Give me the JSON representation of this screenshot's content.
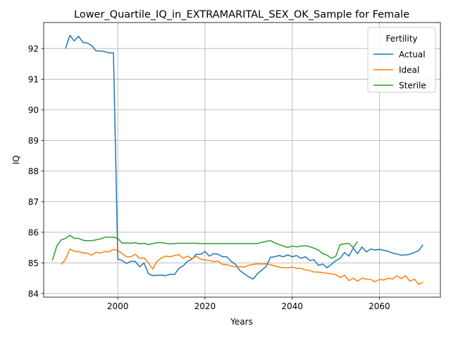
{
  "chart_data": {
    "type": "line",
    "title": "Lower_Quartile_IQ_in_EXTRAMARITAL_SEX_OK_Sample for Female",
    "xlabel": "Years",
    "ylabel": "IQ",
    "xlim": [
      1983,
      2074
    ],
    "ylim": [
      83.88,
      92.85
    ],
    "xticks": [
      2000,
      2020,
      2040,
      2060
    ],
    "yticks": [
      84,
      85,
      86,
      87,
      88,
      89,
      90,
      91,
      92
    ],
    "grid": true,
    "legend": {
      "title": "Fertility",
      "placement": "top-right"
    },
    "series": [
      {
        "name": "Actual",
        "color": "#1f77b4",
        "x": [
          1988,
          1989,
          1990,
          1991,
          1992,
          1993,
          1994,
          1995,
          1996,
          1997,
          1998,
          1999,
          2000,
          2001,
          2002,
          2003,
          2004,
          2005,
          2006,
          2007,
          2008,
          2009,
          2010,
          2011,
          2012,
          2013,
          2014,
          2015,
          2016,
          2017,
          2018,
          2019,
          2020,
          2021,
          2022,
          2023,
          2024,
          2025,
          2026,
          2027,
          2028,
          2029,
          2030,
          2031,
          2032,
          2033,
          2034,
          2035,
          2036,
          2037,
          2038,
          2039,
          2040,
          2041,
          2042,
          2043,
          2044,
          2045,
          2046,
          2047,
          2048,
          2049,
          2050,
          2051,
          2052,
          2053,
          2054,
          2055,
          2056,
          2057,
          2058,
          2059,
          2060,
          2061,
          2062,
          2063,
          2064,
          2065,
          2066,
          2067,
          2068,
          2069,
          2070
        ],
        "y": [
          92.0,
          92.43,
          92.25,
          92.4,
          92.2,
          92.18,
          92.1,
          91.92,
          91.92,
          91.9,
          91.86,
          91.86,
          85.12,
          85.08,
          84.98,
          85.05,
          85.05,
          84.87,
          85.0,
          84.65,
          84.58,
          84.6,
          84.6,
          84.58,
          84.63,
          84.62,
          84.82,
          84.9,
          85.05,
          85.12,
          85.28,
          85.28,
          85.37,
          85.22,
          85.3,
          85.28,
          85.2,
          85.2,
          85.05,
          84.95,
          84.75,
          84.64,
          84.55,
          84.47,
          84.64,
          84.76,
          84.88,
          85.18,
          85.2,
          85.24,
          85.2,
          85.26,
          85.2,
          85.24,
          85.15,
          85.2,
          85.08,
          85.1,
          84.92,
          84.96,
          84.84,
          84.95,
          85.07,
          85.15,
          85.34,
          85.22,
          85.48,
          85.3,
          85.52,
          85.36,
          85.45,
          85.42,
          85.44,
          85.41,
          85.38,
          85.32,
          85.29,
          85.25,
          85.26,
          85.28,
          85.34,
          85.4,
          85.59
        ]
      },
      {
        "name": "Ideal",
        "color": "#ff7f0e",
        "x": [
          1987,
          1988,
          1989,
          1990,
          1991,
          1992,
          1993,
          1994,
          1995,
          1996,
          1997,
          1998,
          1999,
          2000,
          2001,
          2002,
          2003,
          2004,
          2005,
          2006,
          2007,
          2008,
          2009,
          2010,
          2011,
          2012,
          2013,
          2014,
          2015,
          2016,
          2017,
          2018,
          2019,
          2020,
          2021,
          2022,
          2023,
          2024,
          2025,
          2026,
          2027,
          2028,
          2029,
          2030,
          2031,
          2032,
          2033,
          2034,
          2035,
          2036,
          2037,
          2038,
          2039,
          2040,
          2041,
          2042,
          2043,
          2044,
          2045,
          2046,
          2047,
          2048,
          2049,
          2050,
          2051,
          2052,
          2053,
          2054,
          2055,
          2056,
          2057,
          2058,
          2059,
          2060,
          2061,
          2062,
          2063,
          2064,
          2065,
          2066,
          2067,
          2068,
          2069,
          2070
        ],
        "y": [
          84.95,
          85.12,
          85.45,
          85.38,
          85.37,
          85.32,
          85.32,
          85.25,
          85.35,
          85.32,
          85.37,
          85.36,
          85.44,
          85.41,
          85.3,
          85.2,
          85.2,
          85.28,
          85.15,
          85.16,
          85.0,
          84.8,
          85.05,
          85.16,
          85.22,
          85.2,
          85.24,
          85.27,
          85.15,
          85.22,
          85.14,
          85.22,
          85.12,
          85.1,
          85.08,
          85.04,
          85.06,
          84.95,
          84.94,
          84.9,
          84.87,
          84.88,
          84.86,
          84.92,
          84.95,
          84.97,
          84.96,
          84.97,
          84.94,
          84.9,
          84.86,
          84.84,
          84.84,
          84.86,
          84.82,
          84.82,
          84.77,
          84.75,
          84.7,
          84.7,
          84.68,
          84.66,
          84.64,
          84.62,
          84.52,
          84.6,
          84.42,
          84.5,
          84.4,
          84.5,
          84.47,
          84.46,
          84.38,
          84.46,
          84.44,
          84.5,
          84.47,
          84.58,
          84.48,
          84.58,
          84.4,
          84.47,
          84.3,
          84.36
        ]
      },
      {
        "name": "Sterile",
        "color": "#2ca02c",
        "x": [
          1985,
          1986,
          1987,
          1988,
          1989,
          1990,
          1991,
          1992,
          1993,
          1994,
          1995,
          1996,
          1997,
          1998,
          1999,
          2000,
          2001,
          2002,
          2003,
          2004,
          2005,
          2006,
          2007,
          2008,
          2009,
          2010,
          2011,
          2012,
          2013,
          2014,
          2015,
          2016,
          2017,
          2018,
          2019,
          2020,
          2021,
          2022,
          2023,
          2024,
          2025,
          2026,
          2027,
          2028,
          2029,
          2030,
          2031,
          2032,
          2033,
          2034,
          2035,
          2036,
          2037,
          2038,
          2039,
          2040,
          2041,
          2042,
          2043,
          2044,
          2045,
          2046,
          2047,
          2048,
          2049,
          2050,
          2051,
          2052,
          2053,
          2054,
          2055
        ],
        "y": [
          85.08,
          85.55,
          85.75,
          85.8,
          85.9,
          85.8,
          85.8,
          85.74,
          85.72,
          85.73,
          85.75,
          85.78,
          85.84,
          85.84,
          85.84,
          85.8,
          85.64,
          85.65,
          85.64,
          85.66,
          85.62,
          85.64,
          85.6,
          85.63,
          85.66,
          85.66,
          85.64,
          85.62,
          85.63,
          85.64,
          85.64,
          85.64,
          85.64,
          85.64,
          85.63,
          85.63,
          85.63,
          85.63,
          85.63,
          85.63,
          85.63,
          85.63,
          85.63,
          85.63,
          85.63,
          85.63,
          85.63,
          85.63,
          85.67,
          85.7,
          85.73,
          85.65,
          85.6,
          85.55,
          85.5,
          85.55,
          85.52,
          85.55,
          85.56,
          85.53,
          85.48,
          85.42,
          85.3,
          85.25,
          85.15,
          85.22,
          85.6,
          85.62,
          85.64,
          85.5,
          85.7
        ]
      }
    ]
  }
}
